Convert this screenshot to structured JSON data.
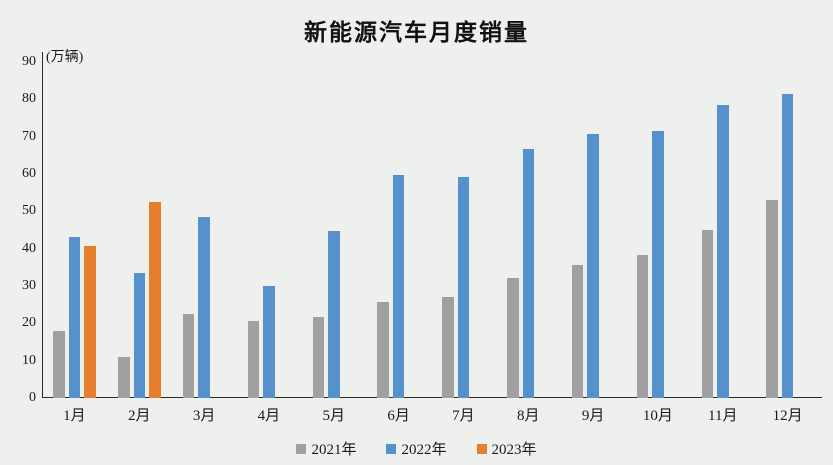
{
  "chart_data": {
    "type": "bar",
    "title": "新能源汽车月度销量",
    "unit": "(万辆)",
    "xlabel": "",
    "ylabel": "万辆",
    "categories": [
      "1月",
      "2月",
      "3月",
      "4月",
      "5月",
      "6月",
      "7月",
      "8月",
      "9月",
      "10月",
      "11月",
      "12月"
    ],
    "series": [
      {
        "name": "2021年",
        "color": "#a0a0a0",
        "values": [
          17.9,
          11.0,
          22.6,
          20.6,
          21.7,
          25.6,
          27.1,
          32.1,
          35.7,
          38.3,
          45.0,
          53.1
        ]
      },
      {
        "name": "2022年",
        "color": "#5591cd",
        "values": [
          43.1,
          33.4,
          48.4,
          29.9,
          44.7,
          59.6,
          59.3,
          66.6,
          70.8,
          71.4,
          78.6,
          81.4
        ]
      },
      {
        "name": "2023年",
        "color": "#e57e2d",
        "values": [
          40.8,
          52.5,
          null,
          null,
          null,
          null,
          null,
          null,
          null,
          null,
          null,
          null
        ]
      }
    ],
    "ylim": [
      0,
      90
    ],
    "ytick_step": 10,
    "grid": false,
    "legend_position": "bottom"
  },
  "colors": {
    "background": "#eef0ed",
    "axis": "#2b2b2b",
    "text": "#1a1a1a"
  }
}
